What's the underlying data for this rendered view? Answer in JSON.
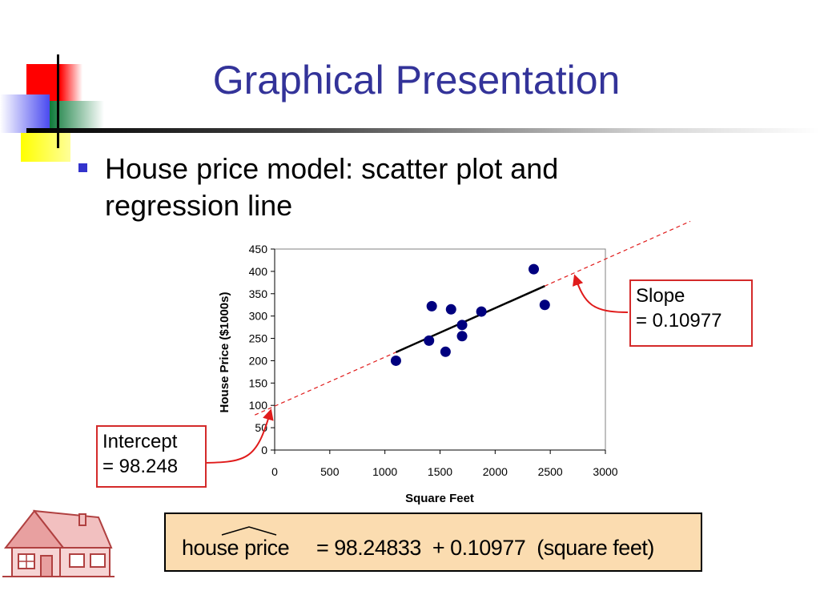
{
  "slide": {
    "title": "Graphical Presentation",
    "bullet": "House price model:  scatter plot and regression line"
  },
  "chart_data": {
    "type": "scatter",
    "xlabel": "Square Feet",
    "ylabel": "House Price ($1000s)",
    "xlim": [
      0,
      3000
    ],
    "ylim": [
      0,
      450
    ],
    "x_ticks": [
      0,
      500,
      1000,
      1500,
      2000,
      2500,
      3000
    ],
    "y_ticks": [
      0,
      50,
      100,
      150,
      200,
      250,
      300,
      350,
      400,
      450
    ],
    "grid": false,
    "points": [
      {
        "x": 1100,
        "y": 200
      },
      {
        "x": 1400,
        "y": 245
      },
      {
        "x": 1425,
        "y": 322
      },
      {
        "x": 1550,
        "y": 220
      },
      {
        "x": 1600,
        "y": 315
      },
      {
        "x": 1700,
        "y": 255
      },
      {
        "x": 1700,
        "y": 280
      },
      {
        "x": 1875,
        "y": 310
      },
      {
        "x": 2350,
        "y": 405
      },
      {
        "x": 2450,
        "y": 325
      }
    ],
    "regression": {
      "intercept": 98.24833,
      "slope": 0.10977,
      "x_range": [
        1100,
        2450
      ]
    },
    "colors": {
      "points": "#00007f",
      "fit_line": "#000000",
      "extended_line": "#e01b1b"
    }
  },
  "callouts": {
    "slope_line1": "Slope",
    "slope_line2": "= 0.10977",
    "intercept_line1": "Intercept",
    "intercept_line2": "= 98.248"
  },
  "equation": {
    "lhs": "house price",
    "rhs": "= 98.24833  + 0.10977  (square feet)"
  },
  "icons": {
    "logo": "color-squares-logo",
    "house": "house-icon"
  }
}
